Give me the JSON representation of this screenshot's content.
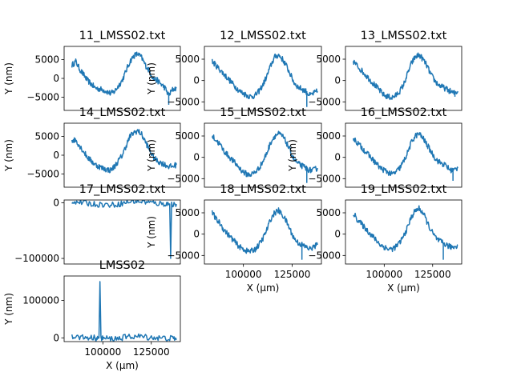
{
  "chart_data": [
    {
      "type": "line",
      "title": "11_LMSS02.txt",
      "xlabel": "",
      "ylabel": "Y (nm)",
      "xlim": [
        80000,
        140000
      ],
      "ylim": [
        -8500,
        8500
      ],
      "xticks": [],
      "yticks": [
        -5000,
        0,
        5000
      ],
      "series": [
        {
          "color": "#1f77b4",
          "x": [
            84000,
            86000,
            88000,
            90000,
            92000,
            94000,
            96000,
            98000,
            100000,
            102000,
            104000,
            106000,
            108000,
            110000,
            112000,
            114000,
            116000,
            118000,
            120000,
            122000,
            124000,
            126000,
            128000,
            130000,
            132000,
            134000,
            136000,
            138000
          ],
          "y": [
            3500,
            4500,
            2500,
            1000,
            -500,
            -1500,
            -2500,
            -2800,
            -3000,
            -3500,
            -4000,
            -3500,
            -2000,
            -500,
            2000,
            4500,
            6000,
            6500,
            5500,
            3500,
            2000,
            0,
            -500,
            -1500,
            -2500,
            -4500,
            -3000,
            -2500
          ]
        }
      ],
      "spikes": [
        {
          "x": 134000,
          "y": -7000
        }
      ]
    },
    {
      "type": "line",
      "title": "12_LMSS02.txt",
      "xlabel": "",
      "ylabel": "Y (nm)",
      "xlim": [
        80000,
        140000
      ],
      "ylim": [
        -7000,
        8000
      ],
      "xticks": [],
      "yticks": [
        -5000,
        0,
        5000
      ],
      "series": [
        {
          "color": "#1f77b4",
          "x": [
            84000,
            86000,
            88000,
            90000,
            92000,
            94000,
            96000,
            98000,
            100000,
            102000,
            104000,
            106000,
            108000,
            110000,
            112000,
            114000,
            116000,
            118000,
            120000,
            122000,
            124000,
            126000,
            128000,
            130000,
            132000,
            134000,
            136000,
            138000
          ],
          "y": [
            4500,
            3500,
            2500,
            1500,
            500,
            -500,
            -1500,
            -2500,
            -3000,
            -3500,
            -3800,
            -3500,
            -2500,
            -1000,
            1000,
            3500,
            5500,
            6000,
            5000,
            3500,
            1500,
            -500,
            -1500,
            -2000,
            -2500,
            -3500,
            -3000,
            -2500
          ]
        }
      ],
      "spikes": [
        {
          "x": 132500,
          "y": -6200
        }
      ]
    },
    {
      "type": "line",
      "title": "13_LMSS02.txt",
      "xlabel": "",
      "ylabel": "",
      "xlim": [
        80000,
        140000
      ],
      "ylim": [
        -7000,
        8000
      ],
      "xticks": [],
      "yticks": [
        -5000,
        0,
        5000
      ],
      "series": [
        {
          "color": "#1f77b4",
          "x": [
            84000,
            86000,
            88000,
            90000,
            92000,
            94000,
            96000,
            98000,
            100000,
            102000,
            104000,
            106000,
            108000,
            110000,
            112000,
            114000,
            116000,
            118000,
            120000,
            122000,
            124000,
            126000,
            128000,
            130000,
            132000,
            134000,
            136000,
            138000
          ],
          "y": [
            4500,
            3500,
            2500,
            1500,
            500,
            -500,
            -1500,
            -2500,
            -3500,
            -3800,
            -4000,
            -3500,
            -2500,
            -1000,
            1500,
            4000,
            5500,
            6000,
            5000,
            3500,
            1500,
            0,
            -1000,
            -1500,
            -2000,
            -2500,
            -3000,
            -2500
          ]
        }
      ],
      "spikes": [
        {
          "x": 136500,
          "y": -3800
        }
      ]
    },
    {
      "type": "line",
      "title": "14_LMSS02.txt",
      "xlabel": "",
      "ylabel": "Y (nm)",
      "xlim": [
        80000,
        140000
      ],
      "ylim": [
        -8500,
        8500
      ],
      "xticks": [],
      "yticks": [
        -5000,
        0,
        5000
      ],
      "series": [
        {
          "color": "#1f77b4",
          "x": [
            84000,
            86000,
            88000,
            90000,
            92000,
            94000,
            96000,
            98000,
            100000,
            102000,
            104000,
            106000,
            108000,
            110000,
            112000,
            114000,
            116000,
            118000,
            120000,
            122000,
            124000,
            126000,
            128000,
            130000,
            132000,
            134000,
            136000,
            138000
          ],
          "y": [
            4000,
            4000,
            2500,
            1000,
            -500,
            -1500,
            -2500,
            -3000,
            -3500,
            -3800,
            -4000,
            -3000,
            -1500,
            0,
            2500,
            5000,
            6000,
            6500,
            5500,
            3500,
            1500,
            -500,
            -1500,
            -2000,
            -2500,
            -3000,
            -3000,
            -2500
          ]
        }
      ],
      "spikes": []
    },
    {
      "type": "line",
      "title": "15_LMSS02.txt",
      "xlabel": "",
      "ylabel": "Y (nm)",
      "xlim": [
        80000,
        140000
      ],
      "ylim": [
        -7000,
        8000
      ],
      "xticks": [],
      "yticks": [
        -5000,
        0,
        5000
      ],
      "series": [
        {
          "color": "#1f77b4",
          "x": [
            84000,
            86000,
            88000,
            90000,
            92000,
            94000,
            96000,
            98000,
            100000,
            102000,
            104000,
            106000,
            108000,
            110000,
            112000,
            114000,
            116000,
            118000,
            120000,
            122000,
            124000,
            126000,
            128000,
            130000,
            132000,
            134000,
            136000,
            138000
          ],
          "y": [
            5000,
            4000,
            3000,
            1500,
            500,
            -500,
            -1500,
            -2500,
            -3500,
            -4000,
            -4000,
            -3500,
            -2500,
            -1000,
            1000,
            3500,
            5000,
            5500,
            5000,
            3500,
            1500,
            -500,
            -1500,
            -2000,
            -2500,
            -3000,
            -3000,
            -2500
          ]
        }
      ],
      "spikes": [
        {
          "x": 132500,
          "y": -6000
        }
      ]
    },
    {
      "type": "line",
      "title": "16_LMSS02.txt",
      "xlabel": "",
      "ylabel": "Y (nm)",
      "xlim": [
        80000,
        140000
      ],
      "ylim": [
        -7000,
        8000
      ],
      "xticks": [],
      "yticks": [
        -5000,
        0,
        5000
      ],
      "series": [
        {
          "color": "#1f77b4",
          "x": [
            84000,
            86000,
            88000,
            90000,
            92000,
            94000,
            96000,
            98000,
            100000,
            102000,
            104000,
            106000,
            108000,
            110000,
            112000,
            114000,
            116000,
            118000,
            120000,
            122000,
            124000,
            126000,
            128000,
            130000,
            132000,
            134000,
            136000,
            138000
          ],
          "y": [
            4500,
            3500,
            2500,
            1500,
            500,
            -500,
            -1500,
            -2500,
            -3000,
            -3500,
            -4000,
            -3500,
            -2500,
            -1000,
            1000,
            3500,
            5000,
            5500,
            4500,
            3000,
            1500,
            0,
            -1000,
            -1500,
            -2000,
            -3000,
            -3000,
            -2500
          ]
        }
      ],
      "spikes": [
        {
          "x": 135500,
          "y": -5500
        }
      ]
    },
    {
      "type": "line",
      "title": "17_LMSS02.txt",
      "xlabel": "",
      "ylabel": "",
      "xlim": [
        80000,
        140000
      ],
      "ylim": [
        -110000,
        5000
      ],
      "xticks": [],
      "yticks": [
        -100000,
        0
      ],
      "series": [
        {
          "color": "#1f77b4",
          "x": [
            84000,
            88000,
            92000,
            96000,
            100000,
            104000,
            108000,
            112000,
            116000,
            120000,
            124000,
            128000,
            132000,
            134500,
            135000,
            135500,
            138000
          ],
          "y": [
            3000,
            1000,
            -1000,
            -2500,
            -3000,
            -4000,
            -2500,
            500,
            3000,
            2500,
            500,
            -1000,
            -2000,
            -2000,
            -100000,
            -2000,
            -2500
          ]
        }
      ],
      "spikes": []
    },
    {
      "type": "line",
      "title": "18_LMSS02.txt",
      "xlabel": "X (μm)",
      "ylabel": "Y (nm)",
      "xlim": [
        80000,
        140000
      ],
      "ylim": [
        -7000,
        8000
      ],
      "xticks": [
        100000,
        125000
      ],
      "yticks": [
        -5000,
        0,
        5000
      ],
      "series": [
        {
          "color": "#1f77b4",
          "x": [
            84000,
            86000,
            88000,
            90000,
            92000,
            94000,
            96000,
            98000,
            100000,
            102000,
            104000,
            106000,
            108000,
            110000,
            112000,
            114000,
            116000,
            118000,
            120000,
            122000,
            124000,
            126000,
            128000,
            130000,
            132000,
            134000,
            136000,
            138000
          ],
          "y": [
            5000,
            3500,
            2500,
            1000,
            0,
            -1000,
            -2000,
            -3000,
            -3500,
            -4000,
            -4000,
            -3500,
            -2500,
            -1000,
            1000,
            3500,
            5000,
            5500,
            4500,
            3000,
            1000,
            -1000,
            -2000,
            -2500,
            -3000,
            -3500,
            -3000,
            -2500
          ]
        }
      ],
      "spikes": [
        {
          "x": 130000,
          "y": -6000
        }
      ]
    },
    {
      "type": "line",
      "title": "19_LMSS02.txt",
      "xlabel": "X (μm)",
      "ylabel": "",
      "xlim": [
        80000,
        140000
      ],
      "ylim": [
        -7000,
        8000
      ],
      "xticks": [
        100000,
        125000
      ],
      "yticks": [
        -5000,
        0,
        5000
      ],
      "series": [
        {
          "color": "#1f77b4",
          "x": [
            84000,
            86000,
            88000,
            90000,
            92000,
            94000,
            96000,
            98000,
            100000,
            102000,
            104000,
            106000,
            108000,
            110000,
            112000,
            114000,
            116000,
            118000,
            120000,
            122000,
            124000,
            126000,
            128000,
            130000,
            132000,
            134000,
            136000,
            138000
          ],
          "y": [
            5000,
            3500,
            2500,
            1500,
            500,
            -500,
            -1500,
            -2500,
            -3000,
            -3500,
            -3500,
            -3000,
            -2000,
            -500,
            1500,
            4000,
            5500,
            6000,
            5000,
            3000,
            1000,
            -500,
            -1500,
            -2000,
            -2500,
            -3000,
            -3000,
            -2500
          ]
        }
      ],
      "spikes": [
        {
          "x": 130500,
          "y": -6000
        }
      ]
    },
    {
      "type": "line",
      "title": "LMSS02",
      "xlabel": "X (μm)",
      "ylabel": "Y (nm)",
      "xlim": [
        80000,
        140000
      ],
      "ylim": [
        -10000,
        165000
      ],
      "xticks": [
        100000,
        125000
      ],
      "yticks": [
        0,
        100000
      ],
      "series": [
        {
          "color": "#1f77b4",
          "x": [
            84000,
            88000,
            92000,
            96000,
            98000,
            98500,
            99000,
            100000,
            104000,
            108000,
            112000,
            116000,
            120000,
            124000,
            128000,
            132000,
            136000,
            138000
          ],
          "y": [
            3500,
            2000,
            1000,
            0,
            -500,
            150000,
            -500,
            -1000,
            -2500,
            -1500,
            2000,
            4000,
            3500,
            1500,
            0,
            -1000,
            -1500,
            -2000
          ]
        }
      ],
      "spikes": []
    }
  ]
}
